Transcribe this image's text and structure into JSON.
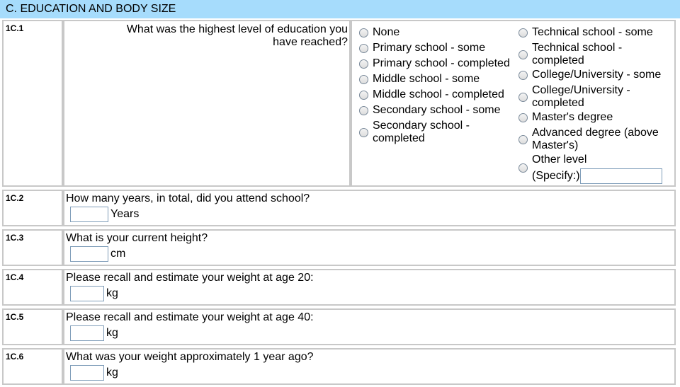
{
  "section_title": "C. EDUCATION AND BODY SIZE",
  "q1": {
    "number": "1C.1",
    "question": "What was the highest level of education you have reached?",
    "options_left": [
      "None",
      "Primary school - some",
      "Primary school - completed",
      "Middle school - some",
      "Middle school - completed",
      "Secondary school - some",
      "Secondary school - completed"
    ],
    "options_right": [
      "Technical school - some",
      "Technical school - completed",
      "College/University - some",
      "College/University - completed",
      "Master's degree",
      "Advanced degree (above Master's)",
      "Other level"
    ],
    "specify_label": "(Specify:)",
    "specify_value": ""
  },
  "rows": [
    {
      "number": "1C.2",
      "question": "How many years, in total, did you attend school?",
      "unit": "Years",
      "value": ""
    },
    {
      "number": "1C.3",
      "question": "What is your current height?",
      "unit": "cm",
      "value": ""
    },
    {
      "number": "1C.4",
      "question": "Please recall and estimate your weight at age 20:",
      "unit": "kg",
      "value": ""
    },
    {
      "number": "1C.5",
      "question": "Please recall and estimate your weight at age 40:",
      "unit": "kg",
      "value": ""
    },
    {
      "number": "1C.6",
      "question": "What was your weight approximately 1 year ago?",
      "unit": "kg",
      "value": ""
    }
  ]
}
